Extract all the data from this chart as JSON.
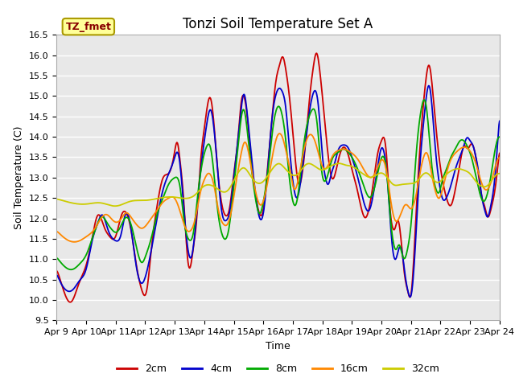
{
  "title": "Tonzi Soil Temperature Set A",
  "xlabel": "Time",
  "ylabel": "Soil Temperature (C)",
  "ylim": [
    9.5,
    16.5
  ],
  "xtick_labels": [
    "Apr 9",
    "Apr 10",
    "Apr 11",
    "Apr 12",
    "Apr 13",
    "Apr 14",
    "Apr 15",
    "Apr 16",
    "Apr 17",
    "Apr 18",
    "Apr 19",
    "Apr 20",
    "Apr 21",
    "Apr 22",
    "Apr 23",
    "Apr 24"
  ],
  "ytick_labels": [
    "9.5",
    "10.0",
    "10.5",
    "11.0",
    "11.5",
    "12.0",
    "12.5",
    "13.0",
    "13.5",
    "14.0",
    "14.5",
    "15.0",
    "15.5",
    "16.0",
    "16.5"
  ],
  "legend_label": "TZ_fmet",
  "series_colors": [
    "#cc0000",
    "#0000cc",
    "#00aa00",
    "#ff8800",
    "#cccc00"
  ],
  "series_labels": [
    "2cm",
    "4cm",
    "8cm",
    "16cm",
    "32cm"
  ],
  "plot_bg_color": "#e8e8e8",
  "title_fontsize": 12,
  "axis_label_fontsize": 9,
  "tick_fontsize": 8,
  "legend_fontsize": 9
}
